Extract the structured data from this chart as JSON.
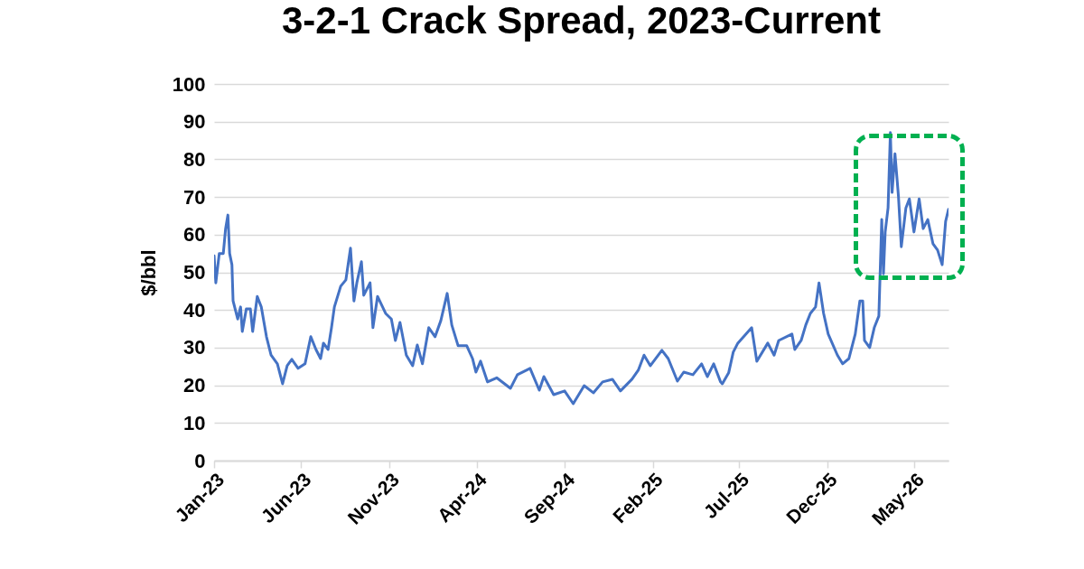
{
  "chart_data": {
    "type": "line",
    "title": "3-2-1 Crack Spread, 2023-Current",
    "ylabel": "$/bbl",
    "xlim": [
      "2023-01-01",
      "2026-06-30"
    ],
    "xticks": [
      {
        "value": "2023-01-01",
        "label": "Jan-23"
      },
      {
        "value": "2023-06-01",
        "label": "Jun-23"
      },
      {
        "value": "2023-11-01",
        "label": "Nov-23"
      },
      {
        "value": "2024-04-01",
        "label": "Apr-24"
      },
      {
        "value": "2024-09-01",
        "label": "Sep-24"
      },
      {
        "value": "2025-02-01",
        "label": "Feb-25"
      },
      {
        "value": "2025-07-01",
        "label": "Jul-25"
      },
      {
        "value": "2025-12-01",
        "label": "Dec-25"
      },
      {
        "value": "2026-05-01",
        "label": "May-26"
      }
    ],
    "ylim": [
      0,
      100
    ],
    "yticks": [
      0,
      10,
      20,
      30,
      40,
      50,
      60,
      70,
      80,
      90,
      100
    ],
    "grid": "y",
    "x": [
      "2023-01-01",
      "2023-01-04",
      "2023-01-10",
      "2023-01-17",
      "2023-01-21",
      "2023-01-25",
      "2023-01-28",
      "2023-02-01",
      "2023-02-03",
      "2023-02-11",
      "2023-02-16",
      "2023-02-19",
      "2023-02-26",
      "2023-03-05",
      "2023-03-09",
      "2023-03-17",
      "2023-03-24",
      "2023-04-02",
      "2023-04-10",
      "2023-04-21",
      "2023-04-30",
      "2023-05-08",
      "2023-05-16",
      "2023-05-27",
      "2023-06-08",
      "2023-06-18",
      "2023-06-27",
      "2023-07-05",
      "2023-07-10",
      "2023-07-18",
      "2023-07-24",
      "2023-07-29",
      "2023-08-09",
      "2023-08-18",
      "2023-08-26",
      "2023-09-01",
      "2023-09-06",
      "2023-09-14",
      "2023-09-18",
      "2023-09-29",
      "2023-10-04",
      "2023-10-12",
      "2023-10-26",
      "2023-11-05",
      "2023-11-12",
      "2023-11-20",
      "2023-12-01",
      "2023-12-12",
      "2023-12-20",
      "2023-12-29",
      "2024-01-09",
      "2024-01-20",
      "2024-01-30",
      "2024-02-10",
      "2024-02-18",
      "2024-02-29",
      "2024-03-07",
      "2024-03-15",
      "2024-03-25",
      "2024-03-31",
      "2024-04-08",
      "2024-04-20",
      "2024-05-06",
      "2024-05-30",
      "2024-06-11",
      "2024-07-03",
      "2024-07-19",
      "2024-07-27",
      "2024-08-13",
      "2024-09-01",
      "2024-09-16",
      "2024-10-05",
      "2024-10-21",
      "2024-11-06",
      "2024-11-23",
      "2024-12-07",
      "2024-12-27",
      "2025-01-07",
      "2025-01-17",
      "2025-01-28",
      "2025-02-17",
      "2025-02-28",
      "2025-03-16",
      "2025-03-27",
      "2025-04-12",
      "2025-04-27",
      "2025-05-07",
      "2025-05-18",
      "2025-05-30",
      "2025-06-02",
      "2025-06-13",
      "2025-06-21",
      "2025-06-29",
      "2025-07-23",
      "2025-08-01",
      "2025-08-20",
      "2025-08-31",
      "2025-09-08",
      "2025-10-01",
      "2025-10-06",
      "2025-10-17",
      "2025-10-25",
      "2025-11-02",
      "2025-11-11",
      "2025-11-17",
      "2025-11-25",
      "2025-12-03",
      "2025-12-19",
      "2025-12-28",
      "2026-01-08",
      "2026-01-19",
      "2026-01-27",
      "2026-02-01",
      "2026-02-04",
      "2026-02-13",
      "2026-02-21",
      "2026-03-01",
      "2026-03-06",
      "2026-03-09",
      "2026-03-12",
      "2026-03-17",
      "2026-03-21",
      "2026-03-24",
      "2026-03-29",
      "2026-04-04",
      "2026-04-09",
      "2026-04-17",
      "2026-04-23",
      "2026-05-01",
      "2026-05-10",
      "2026-05-17",
      "2026-05-25",
      "2026-06-03",
      "2026-06-11",
      "2026-06-19",
      "2026-06-25",
      "2026-06-30"
    ],
    "series": [
      {
        "color": "#4472c4",
        "values": [
          54.4,
          47.2,
          55,
          55,
          61.6,
          65.2,
          55,
          52,
          42.4,
          37.6,
          40.8,
          34.3,
          40.3,
          40.3,
          34.3,
          43.6,
          40.8,
          32.9,
          28,
          25.7,
          20.4,
          25.2,
          26.9,
          24.5,
          25.7,
          32.9,
          29.5,
          27.1,
          31.2,
          29.5,
          35.3,
          40.8,
          46.3,
          48,
          56.4,
          42.4,
          47.2,
          52.8,
          43.9,
          47.2,
          35.3,
          43.6,
          39.1,
          37.6,
          31.9,
          36.7,
          28,
          25.2,
          30.7,
          25.7,
          35.3,
          32.9,
          37.2,
          44.4,
          36,
          30.5,
          30.5,
          30.5,
          27.1,
          23.5,
          26.4,
          20.9,
          22,
          19.2,
          22.8,
          24.5,
          18.7,
          22.3,
          17.5,
          18.5,
          15.1,
          19.9,
          18,
          20.9,
          21.6,
          18.5,
          21.6,
          24,
          28,
          25.2,
          29.3,
          27.1,
          21.1,
          23.5,
          22.8,
          25.7,
          22.3,
          25.7,
          20.9,
          20.4,
          23.3,
          28.8,
          31.2,
          35.3,
          26.4,
          31.2,
          28,
          31.9,
          33.6,
          29.5,
          31.9,
          36,
          39.1,
          40.8,
          47.2,
          39.1,
          33.6,
          28,
          25.7,
          27.1,
          33.6,
          42.4,
          42.4,
          31.9,
          30,
          35.3,
          38.4,
          64,
          49.6,
          60.7,
          67.1,
          87.1,
          71.2,
          81.5,
          70.3,
          56.8,
          67.1,
          69.5,
          60.7,
          69.5,
          61.6,
          64,
          57.6,
          55.9,
          52,
          63.5,
          66.7
        ]
      }
    ]
  }
}
